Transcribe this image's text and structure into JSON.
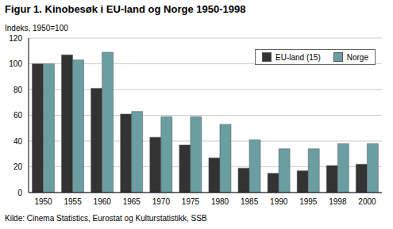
{
  "chart_data": {
    "type": "bar",
    "title": "Figur 1. Kinobesøk i EU-land og Norge 1950-1998",
    "subtitle": "Indeks, 1950=100",
    "source": "Kilde: Cinema Statistics, Eurostat og Kulturstatistikk, SSB",
    "categories": [
      "1950",
      "1955",
      "1960",
      "1965",
      "1970",
      "1975",
      "1980",
      "1985",
      "1990",
      "1995",
      "1998",
      "2000"
    ],
    "series": [
      {
        "name": "EU-land (15)",
        "color": "#333333",
        "values": [
          100,
          107,
          81,
          61,
          43,
          37,
          27,
          19,
          15,
          17,
          21,
          22
        ]
      },
      {
        "name": "Norge",
        "color": "#6a9ea0",
        "values": [
          100,
          103,
          109,
          63,
          59,
          59,
          53,
          41,
          34,
          34,
          38,
          38
        ]
      }
    ],
    "ylim": [
      0,
      120
    ],
    "yticks": [
      0,
      20,
      40,
      60,
      80,
      100,
      120
    ],
    "grid": true,
    "legend": "upper right"
  }
}
